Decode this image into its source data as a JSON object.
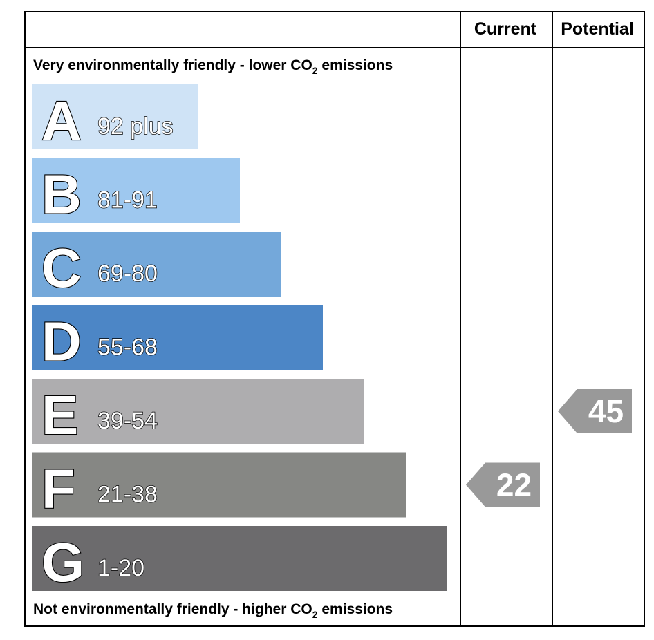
{
  "columns": {
    "current": "Current",
    "potential": "Potential"
  },
  "top_note": {
    "text": "Very environmentally friendly - lower CO",
    "sub": "2",
    "tail": " emissions"
  },
  "bottom_note": {
    "text": "Not environmentally friendly - higher CO",
    "sub": "2",
    "tail": " emissions"
  },
  "chart_data": {
    "type": "bar",
    "title": "",
    "categories": [
      "A",
      "B",
      "C",
      "D",
      "E",
      "F",
      "G"
    ],
    "ranges": [
      "92 plus",
      "81-91",
      "69-80",
      "55-68",
      "39-54",
      "21-38",
      "1-20"
    ],
    "colors": [
      "#cfe3f6",
      "#9ec8ef",
      "#74a8da",
      "#4c86c6",
      "#aeadaf",
      "#868784",
      "#6c6b6d"
    ],
    "current": {
      "value": 22,
      "band": "F",
      "color": "#999999"
    },
    "potential": {
      "value": 45,
      "band": "E",
      "color": "#999999"
    }
  }
}
